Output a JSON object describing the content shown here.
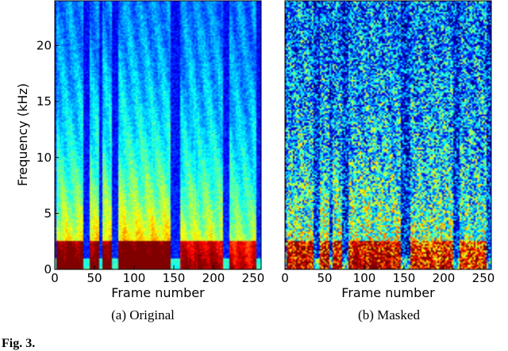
{
  "chart_data": [
    {
      "type": "heatmap",
      "panel": "a",
      "caption": "(a)  Original",
      "xlabel": "Frame number",
      "ylabel": "Frequency (kHz)",
      "xlim": [
        0,
        260
      ],
      "ylim": [
        0,
        24
      ],
      "xticks": [
        "0",
        "50",
        "100",
        "150",
        "200",
        "250"
      ],
      "yticks": [
        "0",
        "5",
        "10",
        "15",
        "20"
      ],
      "colormap": "jet",
      "noise": 0.06,
      "silence_frames": [
        [
          0,
          3
        ],
        [
          37,
          45
        ],
        [
          57,
          60
        ],
        [
          73,
          80
        ],
        [
          147,
          158
        ],
        [
          213,
          221
        ],
        [
          255,
          260
        ]
      ],
      "energy_segments": [
        {
          "start": 3,
          "end": 37,
          "level": 0.55,
          "low_boost": 0.35
        },
        {
          "start": 45,
          "end": 57,
          "level": 0.6,
          "low_boost": 0.3
        },
        {
          "start": 60,
          "end": 73,
          "level": 0.55,
          "low_boost": 0.35
        },
        {
          "start": 80,
          "end": 147,
          "level": 0.6,
          "low_boost": 0.35
        },
        {
          "start": 158,
          "end": 213,
          "level": 0.5,
          "low_boost": 0.3
        },
        {
          "start": 221,
          "end": 255,
          "level": 0.45,
          "low_boost": 0.3
        }
      ]
    },
    {
      "type": "heatmap",
      "panel": "b",
      "caption": "(b)  Masked",
      "xlabel": "Frame number",
      "ylabel": "",
      "xlim": [
        0,
        260
      ],
      "ylim": [
        0,
        24
      ],
      "xticks": [
        "0",
        "50",
        "100",
        "150",
        "200",
        "250"
      ],
      "yticks": [],
      "colormap": "jet",
      "noise": 0.28,
      "silence_frames": [
        [
          0,
          3
        ],
        [
          37,
          45
        ],
        [
          57,
          60
        ],
        [
          73,
          80
        ],
        [
          147,
          158
        ],
        [
          213,
          221
        ],
        [
          255,
          260
        ]
      ],
      "energy_segments": [
        {
          "start": 3,
          "end": 37,
          "level": 0.42,
          "low_boost": 0.35
        },
        {
          "start": 45,
          "end": 57,
          "level": 0.45,
          "low_boost": 0.3
        },
        {
          "start": 60,
          "end": 73,
          "level": 0.42,
          "low_boost": 0.35
        },
        {
          "start": 80,
          "end": 147,
          "level": 0.45,
          "low_boost": 0.35
        },
        {
          "start": 158,
          "end": 213,
          "level": 0.4,
          "low_boost": 0.3
        },
        {
          "start": 221,
          "end": 255,
          "level": 0.38,
          "low_boost": 0.3
        }
      ]
    }
  ],
  "footer_text": "Fig. 3."
}
